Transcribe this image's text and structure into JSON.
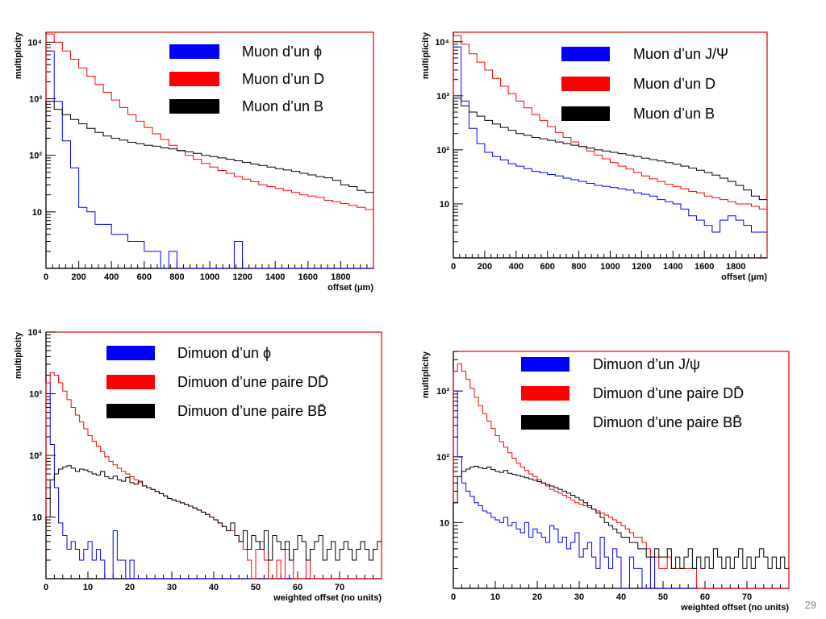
{
  "slide_number": "29",
  "colors": {
    "blue": "#0000ff",
    "red": "#ff0000",
    "black": "#000000",
    "frame_red": "#e00000"
  },
  "chart_data": [
    {
      "type": "line",
      "xlabel": "offset (μm)",
      "ylabel": "multiplicity",
      "xlim": [
        0,
        2000
      ],
      "yscale": "log",
      "ylim": [
        1,
        15000
      ],
      "xticks": [
        "0",
        "200",
        "400",
        "600",
        "800",
        "1000",
        "1200",
        "1400",
        "1600",
        "1800"
      ],
      "yticks": [
        "10",
        "10²",
        "10³",
        "10⁴"
      ],
      "legend": [
        "Muon d’un ϕ",
        "Muon d’un D",
        "Muon d’un B"
      ],
      "series": [
        {
          "name": "Muon d’un ϕ",
          "color": "blue",
          "bin_width": 50,
          "values": [
            7000,
            900,
            180,
            60,
            12,
            10,
            6,
            6,
            4,
            4,
            3,
            3,
            2,
            2,
            1,
            2,
            1,
            1,
            1,
            1,
            1,
            1,
            1,
            3,
            1,
            1,
            1,
            1,
            1,
            1,
            1,
            1,
            1,
            1,
            1,
            1,
            1,
            1,
            1,
            1
          ]
        },
        {
          "name": "Muon d’un D",
          "color": "red",
          "bin_width": 50,
          "values": [
            14000,
            10000,
            7000,
            5000,
            3500,
            2500,
            1800,
            1300,
            950,
            700,
            520,
            400,
            310,
            240,
            190,
            150,
            120,
            100,
            85,
            72,
            62,
            54,
            48,
            42,
            38,
            34,
            30,
            28,
            26,
            24,
            22,
            20,
            19,
            18,
            16,
            15,
            14,
            13,
            12,
            11
          ]
        },
        {
          "name": "Muon d’un B",
          "color": "black",
          "bin_width": 50,
          "values": [
            900,
            650,
            520,
            430,
            360,
            300,
            255,
            220,
            200,
            185,
            170,
            160,
            150,
            145,
            135,
            130,
            122,
            115,
            108,
            100,
            95,
            90,
            85,
            80,
            75,
            70,
            66,
            62,
            58,
            55,
            52,
            48,
            45,
            42,
            40,
            36,
            30,
            28,
            24,
            22
          ]
        }
      ]
    },
    {
      "type": "line",
      "xlabel": "offset (μm)",
      "ylabel": "multiplicity",
      "xlim": [
        0,
        2000
      ],
      "yscale": "log",
      "ylim": [
        1,
        15000
      ],
      "xticks": [
        "0",
        "200",
        "400",
        "600",
        "800",
        "1000",
        "1200",
        "1400",
        "1600",
        "1800"
      ],
      "yticks": [
        "10",
        "10²",
        "10³",
        "10⁴"
      ],
      "legend": [
        "Muon d’un J/Ψ",
        "Muon d’un D",
        "Muon d’un B"
      ],
      "series": [
        {
          "name": "Muon d’un J/Ψ",
          "color": "blue",
          "bin_width": 50,
          "values": [
            8000,
            800,
            250,
            130,
            90,
            75,
            65,
            55,
            50,
            45,
            40,
            38,
            35,
            33,
            30,
            28,
            26,
            24,
            22,
            21,
            20,
            19,
            18,
            16,
            15,
            14,
            12,
            11,
            10,
            8,
            6,
            5,
            4,
            3,
            5,
            6,
            5,
            4,
            3,
            3
          ]
        },
        {
          "name": "Muon d’un D",
          "color": "red",
          "bin_width": 50,
          "values": [
            13000,
            9000,
            6000,
            4200,
            3000,
            2100,
            1500,
            1100,
            800,
            600,
            450,
            350,
            270,
            210,
            170,
            140,
            115,
            95,
            80,
            68,
            58,
            50,
            44,
            38,
            33,
            29,
            26,
            23,
            21,
            19,
            17,
            16,
            14,
            13,
            12,
            11,
            10,
            10,
            9,
            8
          ]
        },
        {
          "name": "Muon d’un B",
          "color": "black",
          "bin_width": 50,
          "values": [
            900,
            650,
            500,
            420,
            350,
            300,
            260,
            230,
            200,
            185,
            170,
            160,
            150,
            140,
            130,
            122,
            115,
            108,
            100,
            95,
            90,
            85,
            80,
            75,
            70,
            66,
            62,
            58,
            54,
            50,
            46,
            42,
            38,
            34,
            30,
            26,
            22,
            18,
            14,
            12
          ]
        }
      ]
    },
    {
      "type": "line",
      "xlabel": "weighted offset (no units)",
      "ylabel": "multiplicity",
      "xlim": [
        0,
        80
      ],
      "yscale": "log",
      "ylim": [
        1,
        10000
      ],
      "xticks": [
        "0",
        "10",
        "20",
        "30",
        "40",
        "50",
        "60",
        "70"
      ],
      "yticks": [
        "10",
        "10²",
        "10³",
        "10⁴"
      ],
      "legend": [
        "Dimuon d’un ϕ",
        "Dimuon d’une paire DD̄",
        "Dimuon d’une paire BB̄"
      ],
      "series": [
        {
          "name": "Dimuon d’un ϕ",
          "color": "blue",
          "bin_width": 1,
          "values": [
            1500,
            150,
            30,
            8,
            5,
            3,
            4,
            3,
            2,
            3,
            4,
            2,
            3,
            2,
            1,
            1,
            6,
            2,
            2,
            1,
            2,
            1,
            1,
            1,
            1,
            1,
            1,
            1,
            1,
            1,
            1,
            1,
            1,
            1,
            1,
            1,
            1,
            1,
            1,
            1,
            1,
            1,
            1,
            1,
            1,
            1,
            1,
            1,
            1,
            1,
            1,
            1,
            1,
            1,
            1,
            1,
            1,
            1,
            1,
            1,
            1,
            1,
            1,
            1,
            1,
            1,
            1,
            1,
            1,
            1,
            1,
            1,
            1,
            1,
            1,
            1,
            1,
            1,
            1,
            1
          ]
        },
        {
          "name": "Dimuon d’une paire DD̄",
          "color": "red",
          "bin_width": 1,
          "values": [
            1500,
            2200,
            2000,
            1500,
            1100,
            800,
            600,
            450,
            350,
            270,
            210,
            170,
            140,
            115,
            95,
            80,
            70,
            62,
            55,
            50,
            45,
            40,
            36,
            32,
            30,
            28,
            26,
            24,
            22,
            20,
            19,
            18,
            17,
            16,
            15,
            14,
            13,
            12,
            11,
            10,
            9,
            8,
            7,
            6,
            6,
            5,
            4,
            3,
            2,
            1,
            3,
            4,
            2,
            1,
            1,
            2,
            1,
            3,
            2,
            1,
            1,
            1,
            2,
            1,
            1,
            1,
            1,
            1,
            1,
            1,
            1,
            1,
            1,
            1,
            1,
            1,
            1,
            1,
            1,
            1
          ]
        },
        {
          "name": "Dimuon d’une paire BB̄",
          "color": "black",
          "bin_width": 1,
          "values": [
            10,
            40,
            50,
            60,
            65,
            68,
            62,
            55,
            60,
            58,
            54,
            50,
            48,
            55,
            45,
            42,
            46,
            40,
            38,
            44,
            36,
            34,
            38,
            32,
            30,
            28,
            26,
            24,
            22,
            20,
            19,
            18,
            17,
            16,
            15,
            14,
            13,
            12,
            11,
            10,
            9,
            8,
            7,
            6,
            8,
            5,
            4,
            6,
            3,
            5,
            4,
            3,
            6,
            2,
            5,
            4,
            3,
            4,
            2,
            3,
            5,
            4,
            2,
            3,
            4,
            5,
            2,
            3,
            4,
            2,
            3,
            4,
            3,
            2,
            3,
            4,
            3,
            2,
            3,
            4
          ]
        }
      ]
    },
    {
      "type": "line",
      "xlabel": "weighted offset (no units)",
      "ylabel": "multiplicity",
      "xlim": [
        0,
        80
      ],
      "yscale": "log",
      "ylim": [
        1,
        4000
      ],
      "xticks": [
        "0",
        "10",
        "20",
        "30",
        "40",
        "50",
        "60",
        "70"
      ],
      "yticks": [
        "10",
        "10²",
        "10³"
      ],
      "legend": [
        "Dimuon d’un J/ψ",
        "Dimuon d’une paire DD̄",
        "Dimuon d’une paire BB̄"
      ],
      "series": [
        {
          "name": "Dimuon d’un J/ψ",
          "color": "blue",
          "bin_width": 1,
          "values": [
            1000,
            100,
            40,
            30,
            25,
            20,
            18,
            15,
            14,
            12,
            11,
            10,
            12,
            9,
            10,
            8,
            7,
            10,
            6,
            8,
            7,
            6,
            5,
            9,
            8,
            5,
            6,
            4,
            5,
            7,
            3,
            4,
            5,
            3,
            2,
            6,
            3,
            2,
            4,
            3,
            1,
            1,
            3,
            2,
            2,
            1,
            1,
            3,
            1,
            1,
            1,
            1,
            1,
            1,
            1,
            1,
            1,
            1,
            1,
            1,
            1,
            1,
            1,
            1,
            1,
            1,
            1,
            1,
            1,
            1,
            1,
            1,
            1,
            1,
            1,
            1,
            1,
            1,
            1,
            1
          ]
        },
        {
          "name": "Dimuon d’une paire DD̄",
          "color": "red",
          "bin_width": 1,
          "values": [
            2000,
            2600,
            2000,
            1500,
            1100,
            800,
            600,
            450,
            350,
            270,
            210,
            170,
            140,
            115,
            95,
            80,
            70,
            62,
            55,
            50,
            45,
            40,
            36,
            32,
            30,
            28,
            26,
            24,
            22,
            20,
            19,
            18,
            17,
            16,
            15,
            14,
            13,
            12,
            11,
            10,
            9,
            8,
            7,
            6,
            6,
            5,
            4,
            3,
            3,
            2,
            2,
            3,
            2,
            2,
            2,
            2,
            2,
            2,
            1,
            1,
            1,
            1,
            1,
            1,
            1,
            1,
            1,
            1,
            1,
            1,
            1,
            1,
            1,
            1,
            1,
            1,
            1,
            1,
            1,
            1
          ]
        },
        {
          "name": "Dimuon d’une paire BB̄",
          "color": "black",
          "bin_width": 1,
          "values": [
            20,
            50,
            60,
            65,
            70,
            72,
            68,
            66,
            70,
            64,
            60,
            58,
            62,
            56,
            54,
            52,
            50,
            48,
            46,
            44,
            42,
            40,
            38,
            36,
            34,
            32,
            30,
            28,
            26,
            24,
            22,
            20,
            18,
            16,
            14,
            12,
            10,
            9,
            8,
            7,
            6,
            6,
            5,
            5,
            4,
            4,
            3,
            3,
            4,
            3,
            3,
            4,
            2,
            3,
            2,
            3,
            4,
            2,
            3,
            2,
            3,
            2,
            4,
            3,
            2,
            3,
            2,
            3,
            4,
            2,
            3,
            2,
            3,
            4,
            3,
            2,
            3,
            2,
            3,
            2
          ]
        }
      ]
    }
  ]
}
